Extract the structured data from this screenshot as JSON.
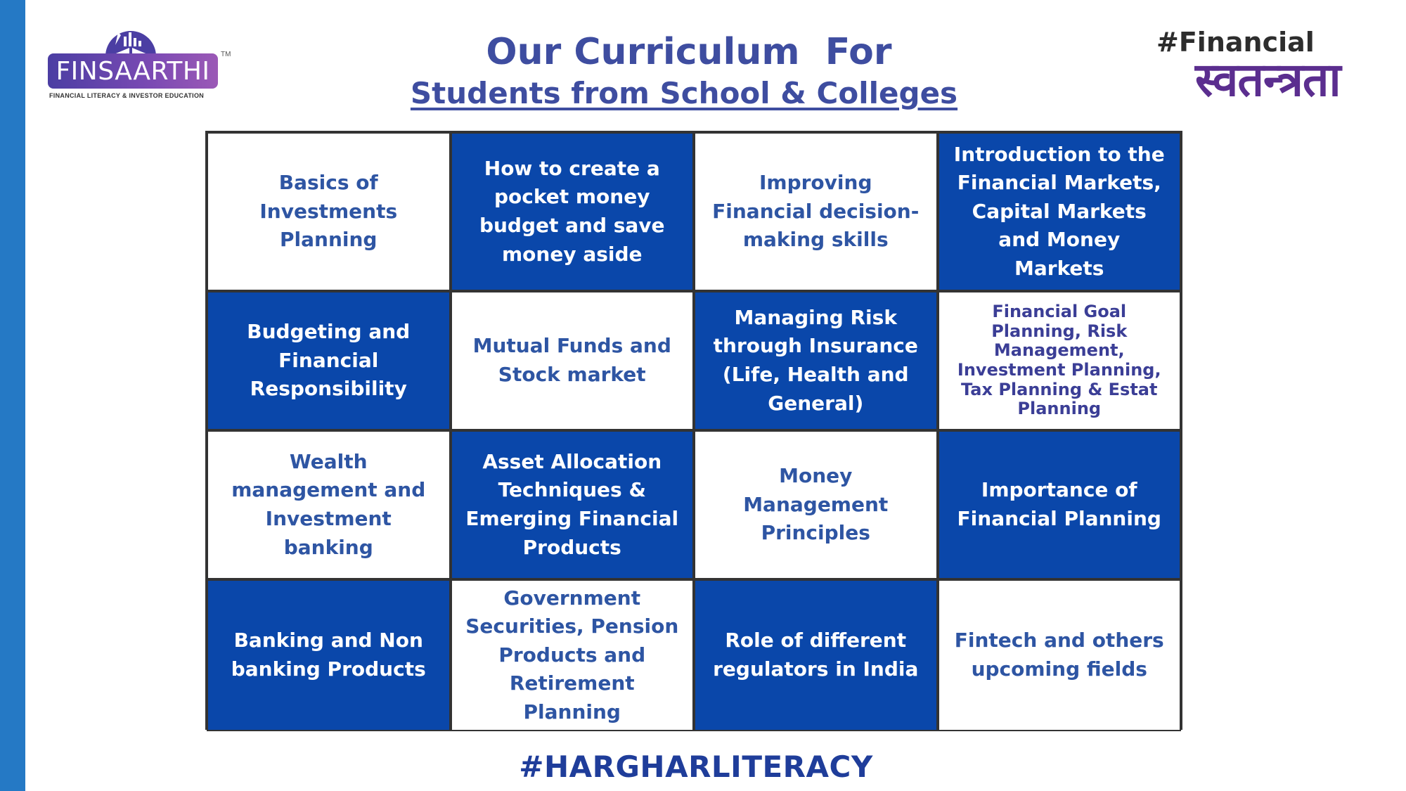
{
  "logo": {
    "name": "FINSAARTHI",
    "tm": "TM",
    "tagline": "FINANCIAL LITERACY & INVESTOR EDUCATION"
  },
  "header": {
    "title": "Our Curriculum  For",
    "subtitle": "Students from School & Colleges"
  },
  "hashtag_top": {
    "line1": "#Financial",
    "line2": "स्वतन्त्रता"
  },
  "colors": {
    "left_bar": "#2579c5",
    "dark_cell": "#0a47aa",
    "title": "#3e4da0"
  },
  "grid": {
    "cells": [
      {
        "text": "Basics of Investments Planning",
        "style": "light"
      },
      {
        "text": "How to create a pocket money budget and save money aside",
        "style": "dark"
      },
      {
        "text": "Improving Financial decision-making skills",
        "style": "light"
      },
      {
        "text": "Introduction to the Financial Markets, Capital Markets and Money Markets",
        "style": "dark"
      },
      {
        "text": "Budgeting and Financial Responsibility",
        "style": "dark"
      },
      {
        "text": "Mutual Funds and Stock market",
        "style": "light"
      },
      {
        "text": "Managing Risk through Insurance (Life, Health and General)",
        "style": "dark"
      },
      {
        "text": "Financial Goal Planning, Risk Management, Investment Planning, Tax Planning & Estat Planning",
        "style": "light-small"
      },
      {
        "text": "Wealth management and Investment banking",
        "style": "light"
      },
      {
        "text": "Asset Allocation Techniques & Emerging Financial Products",
        "style": "dark"
      },
      {
        "text": "Money Management Principles",
        "style": "light"
      },
      {
        "text": "Importance of Financial Planning",
        "style": "dark"
      },
      {
        "text": "Banking and Non banking Products",
        "style": "dark"
      },
      {
        "text": "Government Securities, Pension Products and Retirement Planning",
        "style": "light"
      },
      {
        "text": "Role of different regulators in India",
        "style": "dark"
      },
      {
        "text": "Fintech and others upcoming fields",
        "style": "light"
      }
    ]
  },
  "footer": {
    "hashtag": "#HARGHARLITERACY"
  }
}
